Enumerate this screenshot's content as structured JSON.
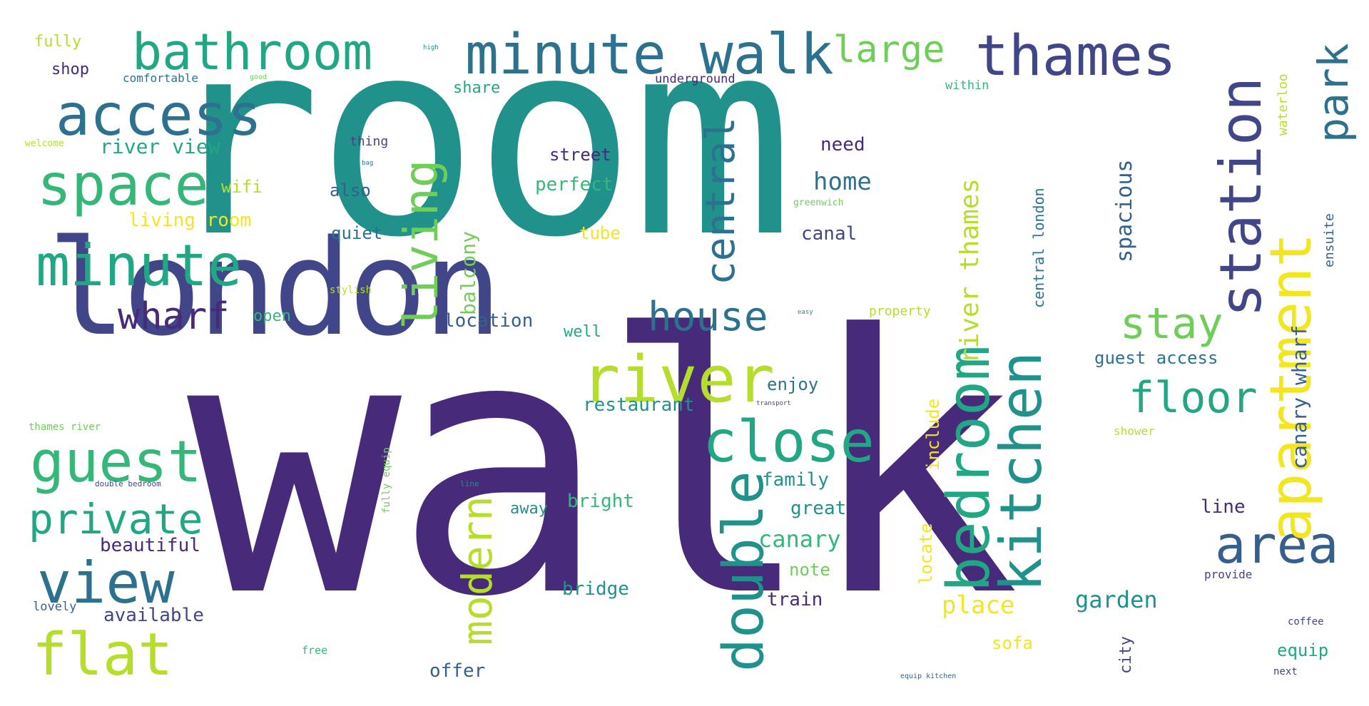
{
  "words": {
    "room": "room",
    "walk": "walk",
    "london": "london",
    "minute_walk": "minute walk",
    "bathroom": "bathroom",
    "thames": "thames",
    "access": "access",
    "space": "space",
    "minute": "minute",
    "wharf": "wharf",
    "guest": "guest",
    "private": "private",
    "view": "view",
    "flat": "flat",
    "river": "river",
    "close": "close",
    "house": "house",
    "double": "double",
    "modern": "modern",
    "bedroom": "bedroom",
    "kitchen": "kitchen",
    "apartment": "apartment",
    "station": "station",
    "park": "park",
    "area": "area",
    "stay": "stay",
    "floor": "floor",
    "large": "large",
    "living": "living",
    "central": "central",
    "river_thames": "river thames",
    "canary_wharf": "canary wharf",
    "fully": "fully",
    "high": "high",
    "shop": "shop",
    "comfortable": "comfortable",
    "good": "good",
    "share": "share",
    "underground": "underground",
    "within": "within",
    "waterloo": "waterloo",
    "welcome": "welcome",
    "river_view": "river view",
    "thing": "thing",
    "bag": "bag",
    "street": "street",
    "need": "need",
    "wifi": "wifi",
    "also": "also",
    "perfect": "perfect",
    "home": "home",
    "greenwich": "greenwich",
    "living_room": "living room",
    "quiet": "quiet",
    "tube": "tube",
    "canal": "canal",
    "stylish": "stylish",
    "open": "open",
    "location": "location",
    "easy": "easy",
    "property": "property",
    "well": "well",
    "enjoy": "enjoy",
    "restaurant": "restaurant",
    "transport": "transport",
    "guest_access": "guest access",
    "thames_river": "thames river",
    "shower": "shower",
    "double_bedroom": "double bedroom",
    "line_small": "line",
    "family": "family",
    "great": "great",
    "canary": "canary",
    "note": "note",
    "away": "away",
    "bright": "bright",
    "beautiful": "beautiful",
    "line": "line",
    "provide": "provide",
    "bridge": "bridge",
    "train": "train",
    "place": "place",
    "garden": "garden",
    "lovely": "lovely",
    "available": "available",
    "coffee": "coffee",
    "free": "free",
    "sofa": "sofa",
    "equip": "equip",
    "offer": "offer",
    "next": "next",
    "equip_kitchen": "equip kitchen",
    "spacious": "spacious",
    "central_london": "central london",
    "ensuite": "ensuite",
    "balcony": "balcony",
    "fully_equip": "fully equip",
    "include": "include",
    "locate": "locate",
    "city": "city"
  },
  "colors": {
    "dark_purple": "#472a7a",
    "indigo": "#404688",
    "slate": "#355f8d",
    "steel": "#2c728e",
    "teal": "#21918c",
    "sea": "#22a785",
    "green": "#35b779",
    "lime": "#6ece58",
    "yellowgreen": "#b5de2b",
    "yellow": "#f4e61e"
  }
}
